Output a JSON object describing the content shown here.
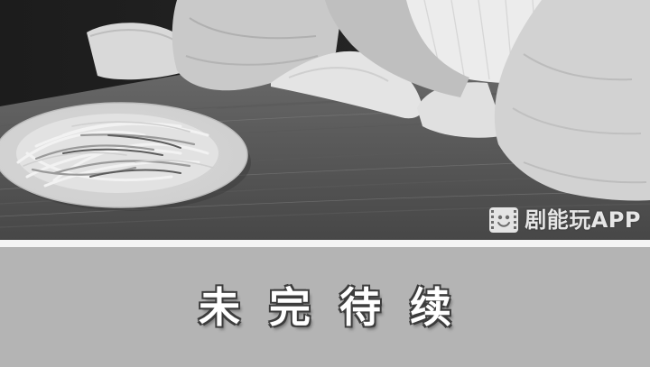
{
  "photo": {
    "tone": "grayscale"
  },
  "watermark": {
    "logo_icon": "film-face-icon",
    "text": "剧能玩APP"
  },
  "banner": {
    "caption": "未完待续"
  }
}
